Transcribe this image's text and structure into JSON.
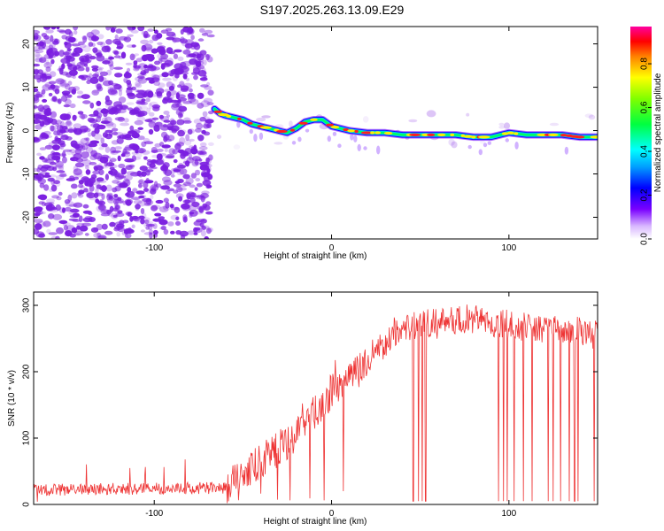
{
  "title": "S197.2025.263.13.09.E29",
  "colors": {
    "snr_line": "#ee3333",
    "scatter_dot": "#7b1fe0",
    "axis": "#000000"
  },
  "chart_data": [
    {
      "type": "heatmap",
      "title": "S197.2025.263.13.09.E29",
      "xlabel": "Height of straight line (km)",
      "ylabel": "Frequency (Hz)",
      "xlim": [
        -168,
        150
      ],
      "ylim": [
        -25,
        24
      ],
      "xticks": [
        -100,
        0,
        100
      ],
      "yticks": [
        -20,
        -10,
        0,
        10,
        20
      ],
      "ridge": {
        "x": [
          -66,
          -63,
          -60,
          -55,
          -50,
          -45,
          -40,
          -35,
          -30,
          -25,
          -20,
          -15,
          -10,
          -5,
          0,
          10,
          20,
          30,
          40,
          50,
          60,
          70,
          80,
          90,
          100,
          110,
          120,
          130,
          140,
          150
        ],
        "freq": [
          5,
          4,
          3.5,
          3,
          2.5,
          1.5,
          1,
          0.5,
          0,
          -0.5,
          0.5,
          2,
          2.5,
          2.5,
          1,
          0,
          -0.5,
          -0.5,
          -1,
          -1,
          -1,
          -1,
          -1.5,
          -1.5,
          -0.5,
          -1,
          -1,
          -1,
          -1.5,
          -1.5
        ]
      },
      "colorbar": {
        "label": "Normalized spectral amplitude",
        "ticks": [
          "0.0",
          "0.2",
          "0.4",
          "0.6",
          "0.8"
        ],
        "range": [
          0,
          0.97
        ]
      }
    },
    {
      "type": "line",
      "xlabel": "Height of straight line (km)",
      "ylabel": "SNR (10 * v/v)",
      "xlim": [
        -168,
        150
      ],
      "ylim": [
        0,
        320
      ],
      "xticks": [
        -100,
        0,
        100
      ],
      "yticks": [
        0,
        100,
        200,
        300
      ],
      "trend": {
        "x": [
          -168,
          -60,
          -40,
          -20,
          0,
          20,
          40,
          60,
          80,
          100,
          120,
          140,
          150
        ],
        "snr": [
          22,
          25,
          65,
          105,
          170,
          220,
          265,
          275,
          280,
          270,
          265,
          260,
          255
        ]
      },
      "dropouts": [
        46,
        49,
        51,
        53,
        94,
        97,
        99,
        103,
        108,
        113,
        122,
        125,
        129,
        134,
        137,
        139,
        148
      ]
    }
  ]
}
